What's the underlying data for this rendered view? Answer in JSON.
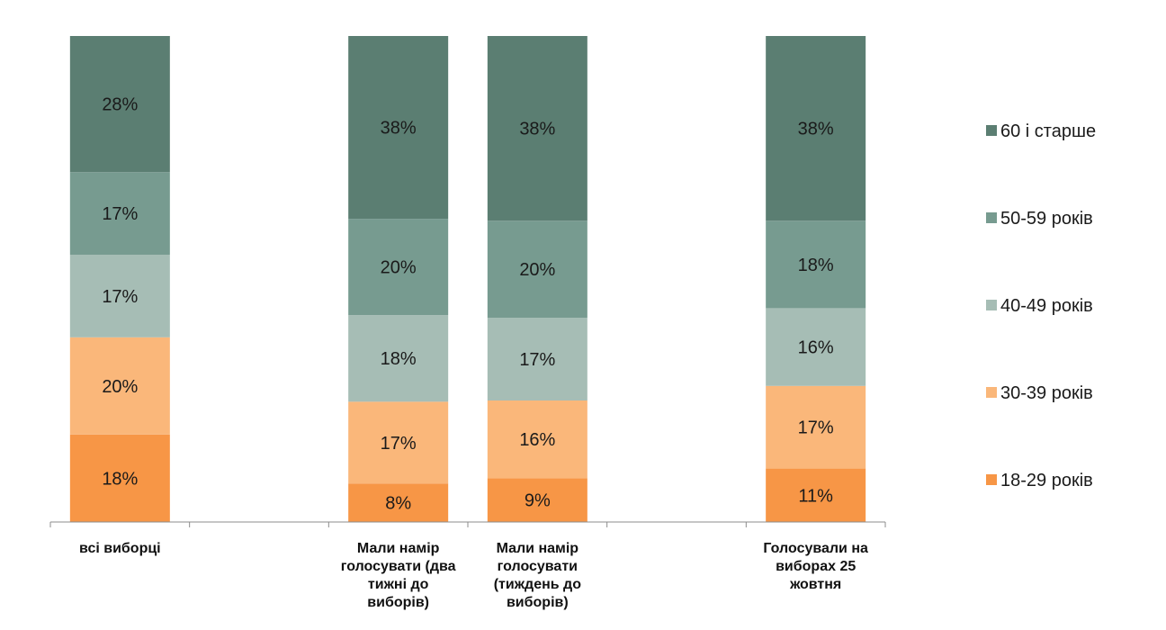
{
  "chart_data": {
    "type": "bar",
    "stacked": true,
    "normalized": true,
    "categories": [
      "всі виборці",
      "Мали намір голосувати (два тижні до виборів)",
      "Мали намір голосувати (тиждень до виборів)",
      "Голосували на виборах 25 жовтня"
    ],
    "category_lines": [
      [
        "всі виборці"
      ],
      [
        "Мали намір",
        "голосувати (два",
        "тижні до",
        "виборів)"
      ],
      [
        "Мали намір",
        "голосувати",
        "(тиждень до",
        "виборів)"
      ],
      [
        "Голосували на",
        "виборах 25",
        "жовтня"
      ]
    ],
    "category_slots": [
      0,
      2,
      3,
      5
    ],
    "slot_count": 6,
    "series": [
      {
        "name": "18-29 років",
        "color": "#f79646",
        "values": [
          18,
          8,
          9,
          11
        ],
        "labels": [
          "18%",
          "8%",
          "9%",
          "11%"
        ]
      },
      {
        "name": "30-39 років",
        "color": "#fab77a",
        "values": [
          20,
          17,
          16,
          17
        ],
        "labels": [
          "20%",
          "17%",
          "16%",
          "17%"
        ]
      },
      {
        "name": "40-49 років",
        "color": "#a6bdb5",
        "values": [
          17,
          18,
          17,
          16
        ],
        "labels": [
          "17%",
          "18%",
          "17%",
          "16%"
        ]
      },
      {
        "name": "50-59 років",
        "color": "#779b90",
        "values": [
          17,
          20,
          20,
          18
        ],
        "labels": [
          "17%",
          "20%",
          "20%",
          "18%"
        ]
      },
      {
        "name": "60 і старше",
        "color": "#5b7e72",
        "values": [
          28,
          38,
          38,
          38
        ],
        "labels": [
          "28%",
          "38%",
          "38%",
          "38%"
        ]
      }
    ],
    "legend_position": "right",
    "legend_order": [
      "60 і старше",
      "50-59 років",
      "40-49 років",
      "30-39 років",
      "18-29 років"
    ],
    "grid": false,
    "axis_color": "#8c8c8c"
  }
}
